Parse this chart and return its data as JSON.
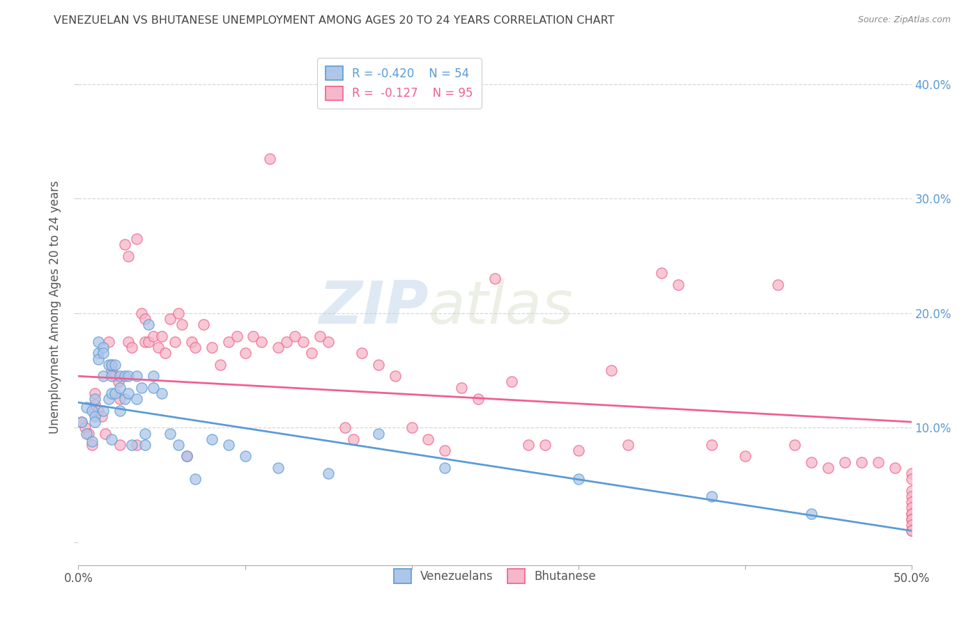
{
  "title": "VENEZUELAN VS BHUTANESE UNEMPLOYMENT AMONG AGES 20 TO 24 YEARS CORRELATION CHART",
  "source": "Source: ZipAtlas.com",
  "ylabel": "Unemployment Among Ages 20 to 24 years",
  "xlim": [
    0.0,
    0.5
  ],
  "ylim": [
    -0.02,
    0.43
  ],
  "xticks": [
    0.0,
    0.1,
    0.2,
    0.3,
    0.4,
    0.5
  ],
  "xticklabels": [
    "0.0%",
    "",
    "",
    "",
    "",
    "50.0%"
  ],
  "yticks": [
    0.0,
    0.1,
    0.2,
    0.3,
    0.4
  ],
  "yticklabels_left": [
    "",
    "",
    "",
    "",
    ""
  ],
  "yticklabels_right": [
    "",
    "10.0%",
    "20.0%",
    "30.0%",
    "40.0%"
  ],
  "venezuelan_color": "#aec6e8",
  "bhutanese_color": "#f5b8c8",
  "venezuelan_line_color": "#5b9bd5",
  "bhutanese_line_color": "#f06090",
  "watermark_text": "ZIPatlas",
  "right_axis_color": "#5b9bd5",
  "background_color": "#ffffff",
  "grid_color": "#cccccc",
  "title_color": "#444444",
  "venezuelan_x": [
    0.002,
    0.005,
    0.005,
    0.008,
    0.008,
    0.01,
    0.01,
    0.01,
    0.012,
    0.012,
    0.012,
    0.015,
    0.015,
    0.015,
    0.015,
    0.018,
    0.018,
    0.02,
    0.02,
    0.02,
    0.02,
    0.022,
    0.022,
    0.025,
    0.025,
    0.025,
    0.028,
    0.028,
    0.03,
    0.03,
    0.032,
    0.035,
    0.035,
    0.038,
    0.04,
    0.04,
    0.042,
    0.045,
    0.045,
    0.05,
    0.055,
    0.06,
    0.065,
    0.07,
    0.08,
    0.09,
    0.1,
    0.12,
    0.15,
    0.18,
    0.22,
    0.3,
    0.38,
    0.44
  ],
  "venezuelan_y": [
    0.105,
    0.118,
    0.095,
    0.115,
    0.088,
    0.125,
    0.11,
    0.105,
    0.175,
    0.165,
    0.16,
    0.17,
    0.165,
    0.145,
    0.115,
    0.155,
    0.125,
    0.155,
    0.145,
    0.13,
    0.09,
    0.155,
    0.13,
    0.145,
    0.135,
    0.115,
    0.145,
    0.125,
    0.145,
    0.13,
    0.085,
    0.145,
    0.125,
    0.135,
    0.095,
    0.085,
    0.19,
    0.145,
    0.135,
    0.13,
    0.095,
    0.085,
    0.075,
    0.055,
    0.09,
    0.085,
    0.075,
    0.065,
    0.06,
    0.095,
    0.065,
    0.055,
    0.04,
    0.025
  ],
  "bhutanese_x": [
    0.002,
    0.004,
    0.006,
    0.008,
    0.01,
    0.01,
    0.012,
    0.014,
    0.016,
    0.018,
    0.02,
    0.02,
    0.022,
    0.024,
    0.025,
    0.025,
    0.028,
    0.03,
    0.03,
    0.032,
    0.035,
    0.035,
    0.038,
    0.04,
    0.04,
    0.042,
    0.045,
    0.048,
    0.05,
    0.052,
    0.055,
    0.058,
    0.06,
    0.062,
    0.065,
    0.068,
    0.07,
    0.075,
    0.08,
    0.085,
    0.09,
    0.095,
    0.1,
    0.105,
    0.11,
    0.115,
    0.12,
    0.125,
    0.13,
    0.135,
    0.14,
    0.145,
    0.15,
    0.16,
    0.165,
    0.17,
    0.18,
    0.19,
    0.2,
    0.21,
    0.22,
    0.23,
    0.24,
    0.25,
    0.26,
    0.27,
    0.28,
    0.3,
    0.32,
    0.33,
    0.35,
    0.36,
    0.38,
    0.4,
    0.42,
    0.43,
    0.44,
    0.45,
    0.46,
    0.47,
    0.48,
    0.49,
    0.5,
    0.5,
    0.5,
    0.5,
    0.5,
    0.5,
    0.5,
    0.5,
    0.5,
    0.5,
    0.5,
    0.5,
    0.5
  ],
  "bhutanese_y": [
    0.105,
    0.1,
    0.095,
    0.085,
    0.13,
    0.12,
    0.115,
    0.11,
    0.095,
    0.175,
    0.155,
    0.15,
    0.145,
    0.14,
    0.125,
    0.085,
    0.26,
    0.25,
    0.175,
    0.17,
    0.085,
    0.265,
    0.2,
    0.195,
    0.175,
    0.175,
    0.18,
    0.17,
    0.18,
    0.165,
    0.195,
    0.175,
    0.2,
    0.19,
    0.075,
    0.175,
    0.17,
    0.19,
    0.17,
    0.155,
    0.175,
    0.18,
    0.165,
    0.18,
    0.175,
    0.335,
    0.17,
    0.175,
    0.18,
    0.175,
    0.165,
    0.18,
    0.175,
    0.1,
    0.09,
    0.165,
    0.155,
    0.145,
    0.1,
    0.09,
    0.08,
    0.135,
    0.125,
    0.23,
    0.14,
    0.085,
    0.085,
    0.08,
    0.15,
    0.085,
    0.235,
    0.225,
    0.085,
    0.075,
    0.225,
    0.085,
    0.07,
    0.065,
    0.07,
    0.07,
    0.07,
    0.065,
    0.06,
    0.055,
    0.045,
    0.04,
    0.035,
    0.03,
    0.025,
    0.025,
    0.02,
    0.02,
    0.015,
    0.01,
    0.01
  ],
  "ven_line_x0": 0.0,
  "ven_line_x1": 0.5,
  "ven_line_y0": 0.122,
  "ven_line_y1": 0.01,
  "bhu_line_x0": 0.0,
  "bhu_line_x1": 0.5,
  "bhu_line_y0": 0.145,
  "bhu_line_y1": 0.105
}
